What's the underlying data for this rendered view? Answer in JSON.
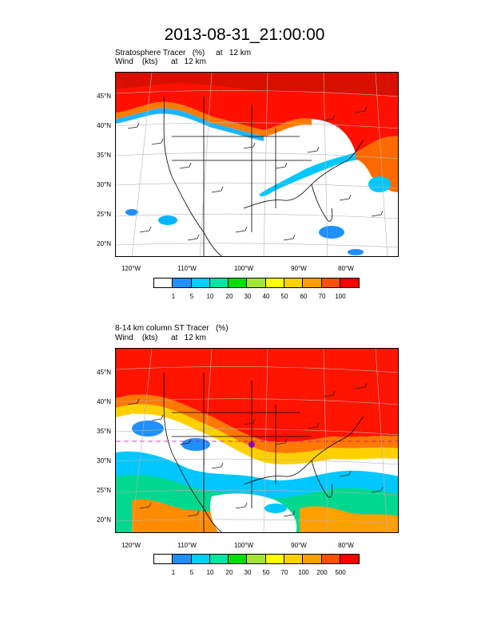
{
  "title": "2013-08-31_21:00:00",
  "panels": [
    {
      "subtitle_line1": "Stratosphere Tracer   (%)     at   12 km",
      "subtitle_line2": "Wind    (kts)      at   12 km",
      "lat_labels": [
        "45°N",
        "40°N",
        "35°N",
        "30°N",
        "25°N",
        "20°N"
      ],
      "lon_labels": [
        "120°W",
        "110°W",
        "100°W",
        "90°W",
        "80°W"
      ],
      "colorbar_labels": [
        "1",
        "5",
        "10",
        "20",
        "30",
        "40",
        "50",
        "60",
        "70",
        "100"
      ]
    },
    {
      "subtitle_line1": "8-14 km column ST Tracer   (%)",
      "subtitle_line2": "Wind    (kts)      at   12 km",
      "lat_labels": [
        "45°N",
        "40°N",
        "35°N",
        "30°N",
        "25°N",
        "20°N"
      ],
      "lon_labels": [
        "120°W",
        "110°W",
        "100°W",
        "90°W",
        "80°W"
      ],
      "colorbar_labels": [
        "1",
        "5",
        "10",
        "20",
        "30",
        "50",
        "70",
        "100",
        "200",
        "500"
      ]
    }
  ],
  "colorbar_colors": [
    "#ffffff",
    "#1e90ff",
    "#00d0ff",
    "#00e6a0",
    "#00e000",
    "#a0e632",
    "#ffff00",
    "#ffd000",
    "#ffa000",
    "#ff5000",
    "#ff0000"
  ]
}
